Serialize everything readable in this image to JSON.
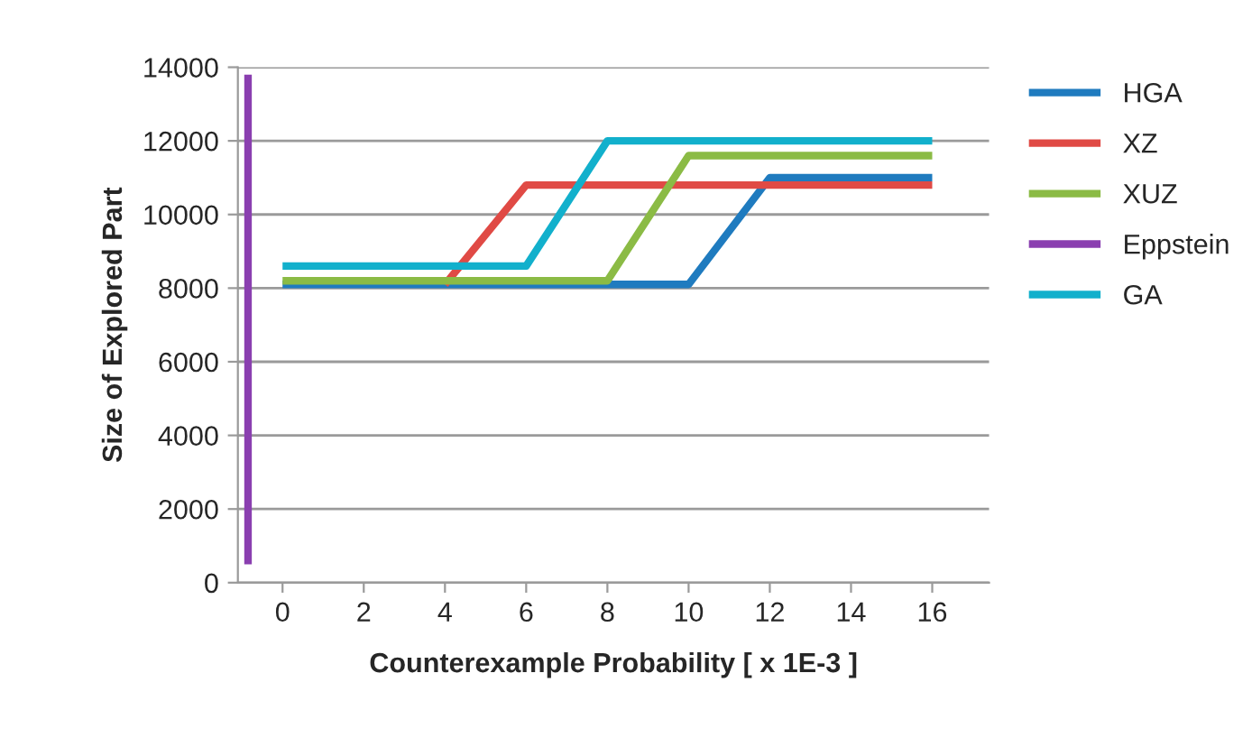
{
  "chart_data": {
    "type": "line",
    "xlabel": "Counterexample Probability [ x 1E-3 ]",
    "ylabel": "Size of Explored Part",
    "x": [
      0,
      2,
      4,
      6,
      8,
      10,
      12,
      14,
      16
    ],
    "series": [
      {
        "name": "HGA",
        "color": "#1f7bbf",
        "values": [
          8100,
          8100,
          8100,
          8100,
          8100,
          8100,
          11000,
          11000,
          11000
        ]
      },
      {
        "name": "XZ",
        "color": "#e04a45",
        "values": [
          null,
          null,
          8100,
          10800,
          10800,
          10800,
          10800,
          10800,
          10800
        ]
      },
      {
        "name": "XUZ",
        "color": "#8bbb45",
        "values": [
          8200,
          8200,
          8200,
          8200,
          8200,
          11600,
          11600,
          11600,
          11600
        ]
      },
      {
        "name": "Eppstein",
        "color": "#8a3fb0",
        "x": [
          -0.85,
          -0.85
        ],
        "values": [
          500,
          13800
        ]
      },
      {
        "name": "GA",
        "color": "#12b0cc",
        "values": [
          8600,
          8600,
          8600,
          8600,
          12000,
          12000,
          12000,
          12000,
          12000
        ]
      }
    ],
    "xlim": [
      -1.1,
      17.4
    ],
    "xticks": [
      0,
      2,
      4,
      6,
      8,
      10,
      12,
      14,
      16
    ],
    "ylim": [
      0,
      14000
    ],
    "yticks": [
      0,
      2000,
      4000,
      6000,
      8000,
      10000,
      12000,
      14000
    ],
    "grid": "y",
    "legend": "right",
    "marker": "none",
    "line_style": "solid"
  }
}
